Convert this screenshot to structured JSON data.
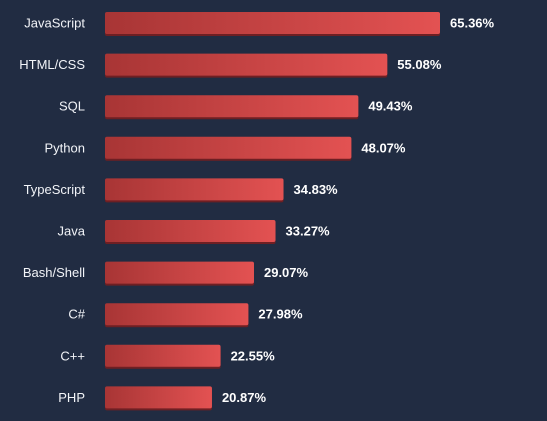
{
  "chart_data": {
    "type": "bar",
    "orientation": "horizontal",
    "title": "",
    "xlabel": "",
    "ylabel": "",
    "categories": [
      "JavaScript",
      "HTML/CSS",
      "SQL",
      "Python",
      "TypeScript",
      "Java",
      "Bash/Shell",
      "C#",
      "C++",
      "PHP"
    ],
    "values": [
      65.36,
      55.08,
      49.43,
      48.07,
      34.83,
      33.27,
      29.07,
      27.98,
      22.55,
      20.87
    ],
    "value_labels": [
      "65.36%",
      "55.08%",
      "49.43%",
      "48.07%",
      "34.83%",
      "33.27%",
      "29.07%",
      "27.98%",
      "22.55%",
      "20.87%"
    ],
    "xlim": [
      0,
      65.36
    ],
    "grid": false,
    "legend": "none",
    "colors": {
      "background": "#212c42",
      "bar_start": "#a83535",
      "bar_end": "#e35252",
      "bar_shadow": "#6e1f23",
      "label_text": "#f2f4f8",
      "value_text": "#ffffff"
    }
  }
}
